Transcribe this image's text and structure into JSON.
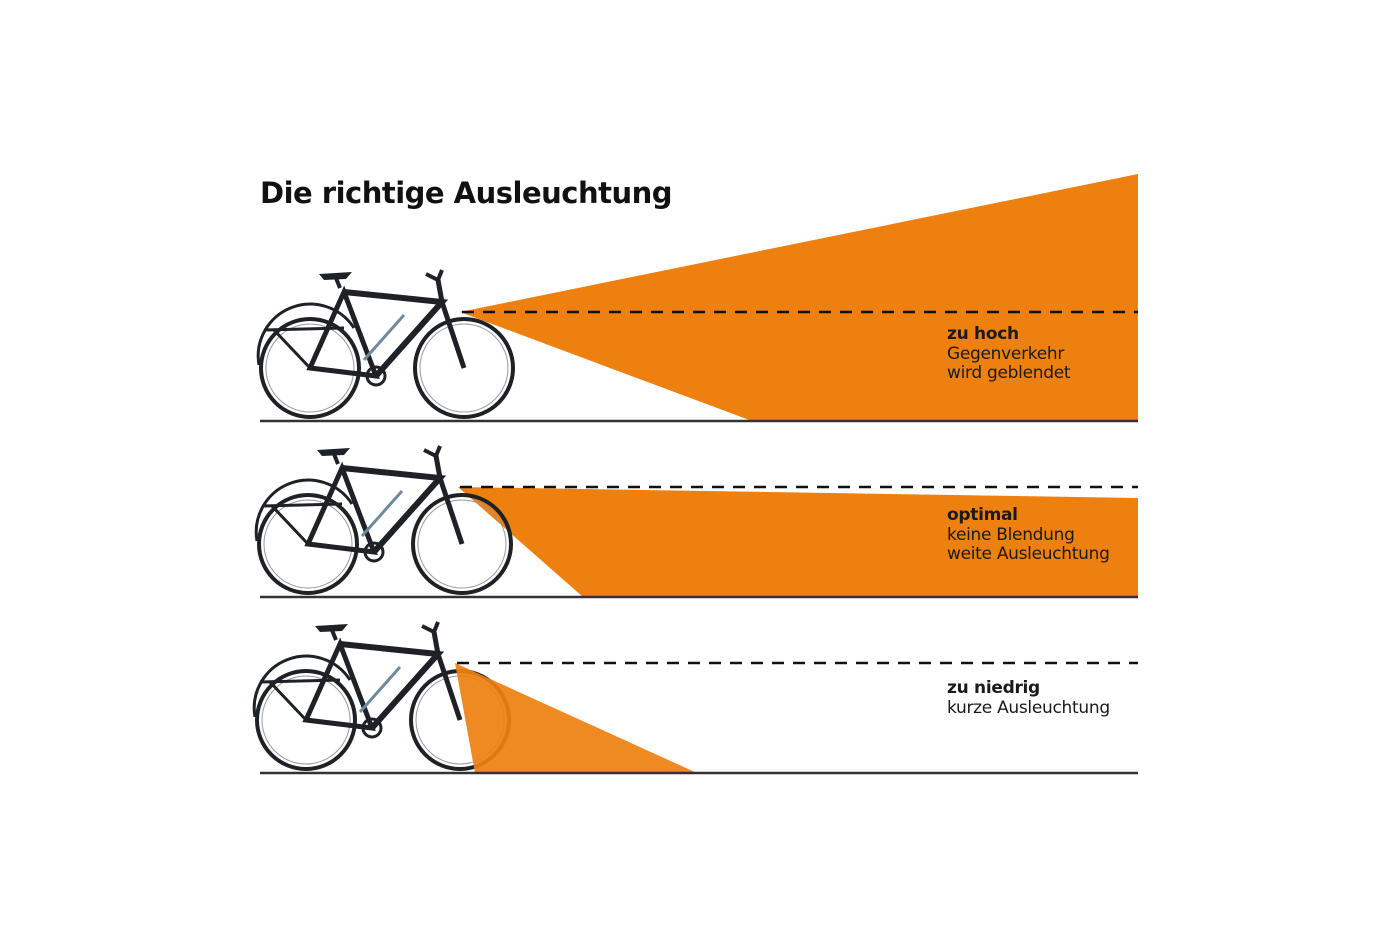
{
  "title": "Die richtige Ausleuchtung",
  "colors": {
    "beam": "#ee8010",
    "ground": "#333333",
    "bike": "#1e2226",
    "accent": "#6f8a9c"
  },
  "panels": [
    {
      "heading": "zu hoch",
      "lines": [
        "Gegenverkehr",
        "wird geblendet"
      ]
    },
    {
      "heading": "optimal",
      "lines": [
        "keine Blendung",
        "weite Ausleuchtung"
      ]
    },
    {
      "heading": "zu niedrig",
      "lines": [
        "kurze Ausleuchtung"
      ]
    }
  ]
}
